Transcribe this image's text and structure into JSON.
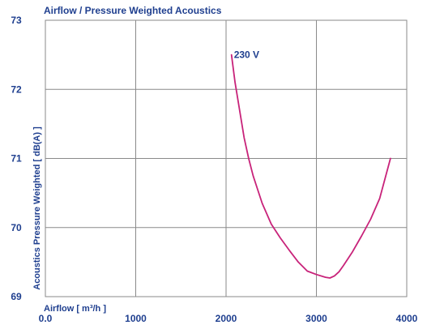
{
  "chart_data": {
    "type": "line",
    "title": "Airflow / Pressure Weighted Acoustics",
    "xlabel": "Airflow [ m³/h ]",
    "ylabel": "Acoustics Pressure Weighted [ dB(A) ]",
    "xlim": [
      0,
      4000
    ],
    "ylim": [
      69,
      73
    ],
    "x_ticks": [
      "0.0",
      "1000",
      "2000",
      "3000",
      "4000"
    ],
    "y_ticks": [
      "69",
      "70",
      "71",
      "72",
      "73"
    ],
    "grid": true,
    "series": [
      {
        "name": "230 V",
        "color": "#c8237a",
        "x": [
          2060,
          2100,
          2150,
          2200,
          2250,
          2300,
          2350,
          2400,
          2500,
          2600,
          2700,
          2800,
          2900,
          3000,
          3100,
          3150,
          3200,
          3250,
          3300,
          3400,
          3500,
          3600,
          3700,
          3820
        ],
        "y": [
          72.5,
          72.1,
          71.7,
          71.3,
          71.0,
          70.75,
          70.55,
          70.35,
          70.05,
          69.85,
          69.67,
          69.5,
          69.37,
          69.32,
          69.28,
          69.27,
          69.3,
          69.36,
          69.45,
          69.65,
          69.88,
          70.12,
          70.42,
          71.0
        ]
      }
    ]
  }
}
